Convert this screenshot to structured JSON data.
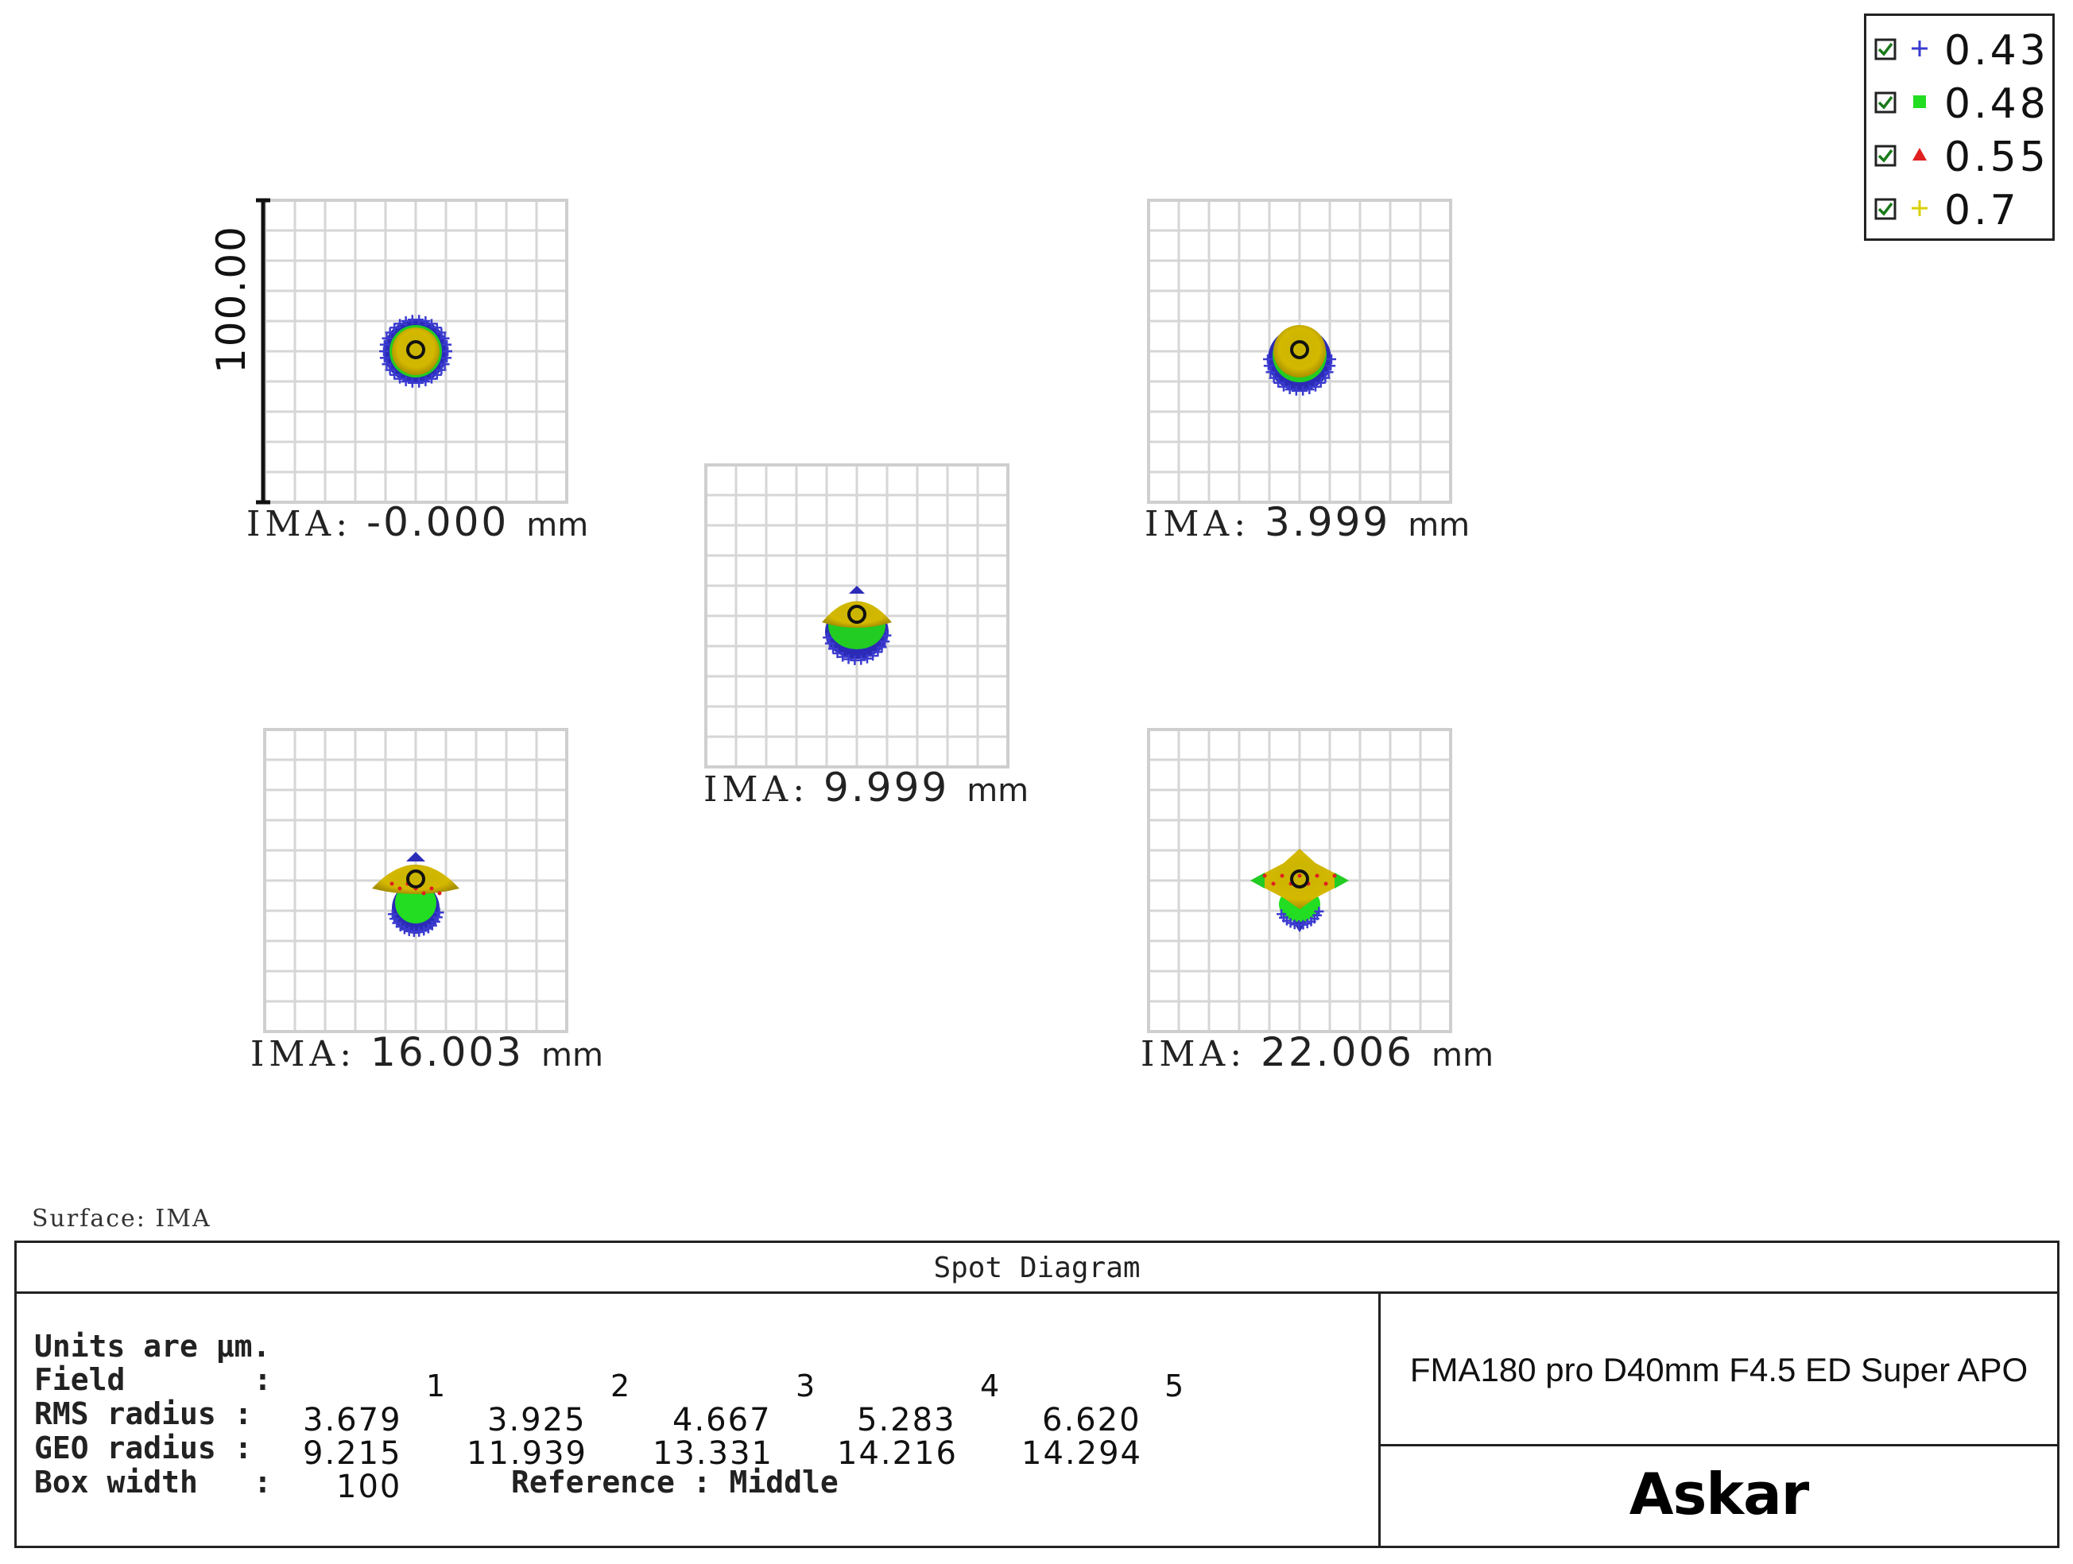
{
  "legend": {
    "items": [
      {
        "label": "0.43",
        "marker": "plus",
        "color": "#3b3bd0"
      },
      {
        "label": "0.48",
        "marker": "square",
        "color": "#22dd22"
      },
      {
        "label": "0.55",
        "marker": "triangle",
        "color": "#e02020"
      },
      {
        "label": "0.7",
        "marker": "plus",
        "color": "#d8d000"
      }
    ]
  },
  "scale_label": "100.00",
  "spots": [
    {
      "id": "field-1",
      "ima_prefix": "IMA:",
      "value": "-0.000",
      "unit": "mm",
      "shape": "round"
    },
    {
      "id": "field-3",
      "ima_prefix": "IMA:",
      "value": "3.999",
      "unit": "mm",
      "shape": "round-low"
    },
    {
      "id": "field-2",
      "ima_prefix": "IMA:",
      "value": "9.999",
      "unit": "mm",
      "shape": "fan"
    },
    {
      "id": "field-4",
      "ima_prefix": "IMA:",
      "value": "16.003",
      "unit": "mm",
      "shape": "wing"
    },
    {
      "id": "field-5",
      "ima_prefix": "IMA:",
      "value": "22.006",
      "unit": "mm",
      "shape": "cross"
    }
  ],
  "surface": "Surface: IMA",
  "table": {
    "title": "Spot Diagram",
    "units": "Units are µm.",
    "field_label": "Field",
    "field_colon": ":",
    "fields": [
      "1",
      "2",
      "3",
      "4",
      "5"
    ],
    "rms_label": "RMS radius :",
    "rms": [
      "3.679",
      "3.925",
      "4.667",
      "5.283",
      "6.620"
    ],
    "geo_label": "GEO radius :",
    "geo": [
      "9.215",
      "11.939",
      "13.331",
      "14.216",
      "14.294"
    ],
    "box_label": "Box width",
    "box_colon": ":",
    "box_value": "100",
    "reference": "Reference   : Middle",
    "product": "FMA180 pro D40mm F4.5 ED Super APO",
    "brand": "Askar"
  }
}
